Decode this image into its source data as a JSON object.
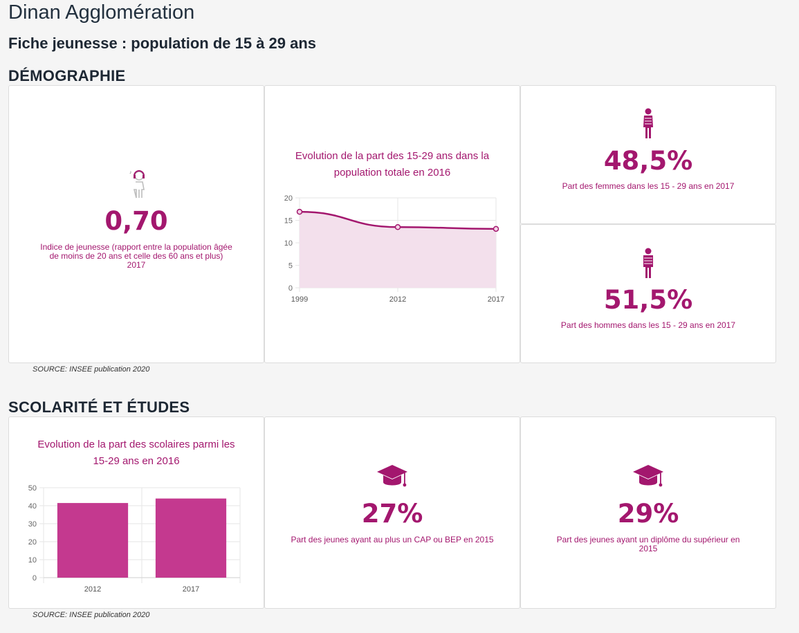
{
  "page": {
    "title": "Dinan Agglomération",
    "subtitle": "Fiche jeunesse : population de 15 à 29 ans"
  },
  "colors": {
    "accent": "#a3176e",
    "bar": "#c4398f",
    "area": "#f3e0ec"
  },
  "demographie": {
    "heading": "DÉMOGRAPHIE",
    "indice": {
      "icon": "young-person-headphones-icon",
      "value": "0,70",
      "caption": "Indice de jeunesse (rapport entre la population âgée de moins de 20 ans et celle des 60 ans et plus) 2017"
    },
    "femmes": {
      "icon": "woman-icon",
      "value": "48,5%",
      "caption": "Part des femmes dans les 15 - 29 ans en 2017"
    },
    "hommes": {
      "icon": "man-icon",
      "value": "51,5%",
      "caption": "Part des hommes dans les 15 - 29 ans en 2017"
    },
    "source": "SOURCE: INSEE publication 2020"
  },
  "scolarite": {
    "heading": "SCOLARITÉ ET ÉTUDES",
    "cap_bep": {
      "icon": "graduation-cap-icon",
      "value": "27%",
      "caption": "Part des jeunes ayant au plus un CAP ou BEP en 2015"
    },
    "superieur": {
      "icon": "graduation-cap-icon",
      "value": "29%",
      "caption": "Part des jeunes ayant un diplôme du supérieur en 2015"
    },
    "source": "SOURCE: INSEE publication 2020"
  },
  "chart_data": [
    {
      "type": "area",
      "title": "Evolution de la part des 15-29 ans dans la population totale en 2016",
      "x": [
        "1999",
        "2012",
        "2017"
      ],
      "values": [
        16.9,
        13.5,
        13.1
      ],
      "ylim": [
        0,
        20
      ],
      "yticks": [
        "0",
        "5",
        "10",
        "15",
        "20"
      ],
      "grid": true
    },
    {
      "type": "bar",
      "title": "Evolution de la part des scolaires parmi les 15-29 ans en 2016",
      "categories": [
        "2012",
        "2017"
      ],
      "values": [
        41.5,
        44
      ],
      "ylim": [
        0,
        50
      ],
      "yticks": [
        "0",
        "10",
        "20",
        "30",
        "40",
        "50"
      ],
      "grid": true
    }
  ]
}
